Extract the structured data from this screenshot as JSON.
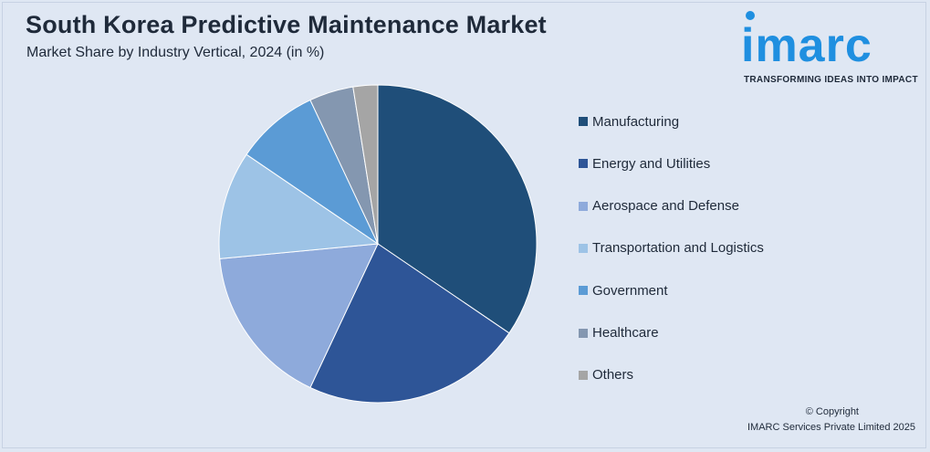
{
  "header": {
    "title": "South Korea Predictive Maintenance Market",
    "subtitle": "Market Share by Industry Vertical, 2024 (in %)"
  },
  "logo": {
    "word": "imarc",
    "tagline": "TRANSFORMING IDEAS INTO IMPACT",
    "color": "#1f8fe0"
  },
  "chart_data": {
    "type": "pie",
    "title": "South Korea Predictive Maintenance Market",
    "subtitle": "Market Share by Industry Vertical, 2024 (in %)",
    "legend_position": "right",
    "slices": [
      {
        "name": "Manufacturing",
        "value": 34.5,
        "color": "#1f4e79"
      },
      {
        "name": "Energy and Utilities",
        "value": 22.5,
        "color": "#2e5597"
      },
      {
        "name": "Aerospace and Defense",
        "value": 16.5,
        "color": "#8eaadb"
      },
      {
        "name": "Transportation and Logistics",
        "value": 11.0,
        "color": "#9dc3e6"
      },
      {
        "name": "Government",
        "value": 8.5,
        "color": "#5b9bd5"
      },
      {
        "name": "Healthcare",
        "value": 4.5,
        "color": "#8497b0"
      },
      {
        "name": "Others",
        "value": 2.5,
        "color": "#a5a5a5"
      }
    ]
  },
  "footer": {
    "copyright": "© Copyright",
    "company": "IMARC Services Private Limited 2025"
  }
}
